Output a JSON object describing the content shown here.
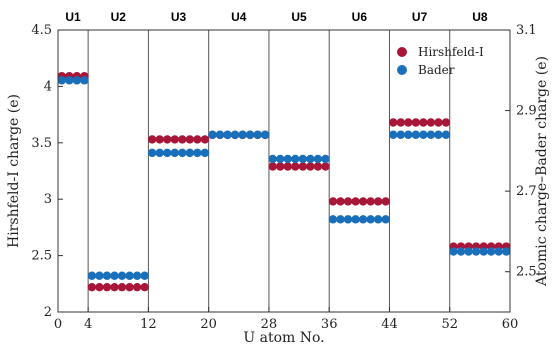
{
  "chart_data": {
    "type": "scatter",
    "title": "",
    "xlabel": "U atom No.",
    "ylabel_left": "Hirshfeld-I charge (e)",
    "ylabel_right": "Atomic charge–Bader charge (e)",
    "xlim": [
      0,
      60
    ],
    "ylim_left": [
      2.0,
      4.5
    ],
    "ylim_right": [
      2.4,
      3.1
    ],
    "x_ticks": [
      "0",
      "4",
      "12",
      "20",
      "28",
      "36",
      "44",
      "52",
      "60"
    ],
    "x_tick_values": [
      0,
      4,
      12,
      20,
      28,
      36,
      44,
      52,
      60
    ],
    "y_ticks_left": [
      "2",
      "2.5",
      "3",
      "3.5",
      "4",
      "4.5"
    ],
    "y_tick_values_left": [
      2,
      2.5,
      3,
      3.5,
      4,
      4.5
    ],
    "y_ticks_right": [
      "2.5",
      "2.7",
      "2.9",
      "3.1"
    ],
    "y_tick_values_right": [
      2.5,
      2.7,
      2.9,
      3.1
    ],
    "segment_boundaries": [
      4,
      12,
      20,
      28,
      36,
      44,
      52
    ],
    "segments": [
      {
        "label": "U1",
        "start": 1,
        "end": 4,
        "hirshfeld": 4.09,
        "bader": 2.975
      },
      {
        "label": "U2",
        "start": 5,
        "end": 12,
        "hirshfeld": 2.22,
        "bader": 2.49
      },
      {
        "label": "U3",
        "start": 13,
        "end": 20,
        "hirshfeld": 3.53,
        "bader": 2.795
      },
      {
        "label": "U4",
        "start": 21,
        "end": 28,
        "hirshfeld": 3.57,
        "bader": 2.84
      },
      {
        "label": "U5",
        "start": 29,
        "end": 36,
        "hirshfeld": 3.29,
        "bader": 2.78
      },
      {
        "label": "U6",
        "start": 37,
        "end": 44,
        "hirshfeld": 2.98,
        "bader": 2.63
      },
      {
        "label": "U7",
        "start": 45,
        "end": 52,
        "hirshfeld": 3.68,
        "bader": 2.84
      },
      {
        "label": "U8",
        "start": 53,
        "end": 60,
        "hirshfeld": 2.58,
        "bader": 2.55
      }
    ],
    "series": [
      {
        "name": "Hirshfeld-I",
        "color": "#a8163a",
        "axis": "left"
      },
      {
        "name": "Bader",
        "color": "#1a6fbb",
        "axis": "right"
      }
    ],
    "legend": "top-right",
    "grid": false
  }
}
